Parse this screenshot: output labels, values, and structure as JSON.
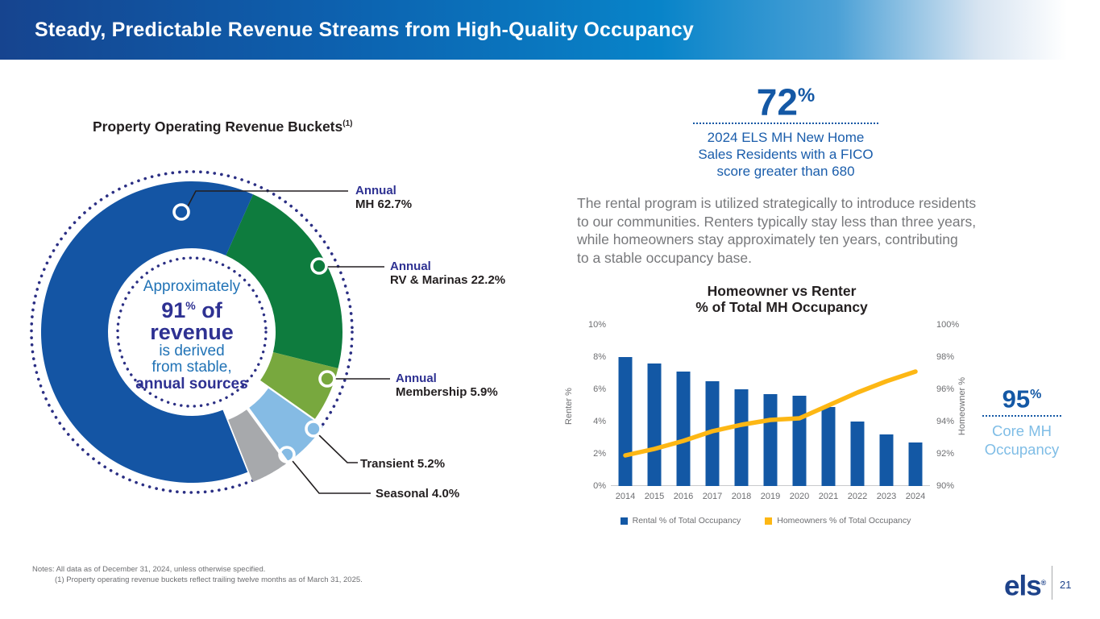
{
  "header": {
    "title": "Steady, Predictable Revenue Streams from High-Quality Occupancy"
  },
  "left_panel": {
    "title": "Property Operating Revenue Buckets",
    "title_superscript": "(1)",
    "center": {
      "line1": "Approximately",
      "big_number": "91",
      "big_pct": "%",
      "big_suffix": " of",
      "line3": "revenue",
      "line4": "is derived",
      "line5": "from stable,",
      "line6": "annual sources"
    }
  },
  "stats": {
    "fico": {
      "value": "72",
      "pct": "%",
      "caption": "2024 ELS MH New Home\nSales Residents with a FICO\nscore greater than 680"
    },
    "core_occupancy": {
      "value": "95",
      "pct": "%",
      "caption": "Core MH\nOccupancy"
    }
  },
  "paragraph": "The rental program is utilized strategically to introduce residents\nto our communities. Renters typically stay less than three years,\nwhile homeowners stay approximately ten years, contributing\nto a stable occupancy base.",
  "chart_data": [
    {
      "type": "pie",
      "title": "Property Operating Revenue Buckets (1)",
      "subtype": "donut",
      "start_angle_deg": 66,
      "center_text": "Approximately 91% of revenue is derived from stable, annual sources",
      "segments": [
        {
          "label": "Annual",
          "name": "MH",
          "display": "MH  62.7%",
          "value": 62.7,
          "color": "#1455a4",
          "exploded": false
        },
        {
          "label": "Annual",
          "name": "RV & Marinas",
          "display": "RV & Marinas  22.2%",
          "value": 22.2,
          "color": "#0e7c3e",
          "exploded": false
        },
        {
          "label": "Annual",
          "name": "Membership",
          "display": "Membership  5.9%",
          "value": 5.9,
          "color": "#78a83e",
          "exploded": false
        },
        {
          "label": "Transient",
          "name": "Transient",
          "display": "Transient  5.2%",
          "value": 5.2,
          "color": "#85bbe4",
          "exploded": true
        },
        {
          "label": "Seasonal",
          "name": "Seasonal",
          "display": "Seasonal  4.0%",
          "value": 4.0,
          "color": "#a7a9ac",
          "exploded": true
        }
      ],
      "dotted_ring_color": "#2b2f84"
    },
    {
      "type": "bar",
      "subtype": "bar+line dual axis",
      "title": "Homeowner vs Renter\n% of Total MH Occupancy",
      "categories": [
        "2014",
        "2015",
        "2016",
        "2017",
        "2018",
        "2019",
        "2020",
        "2021",
        "2022",
        "2023",
        "2024"
      ],
      "series": [
        {
          "name": "Rental % of Total Occupancy",
          "type": "bar",
          "axis": "left",
          "color": "#1358a5",
          "values": [
            8.0,
            7.6,
            7.1,
            6.5,
            6.0,
            5.7,
            5.6,
            4.9,
            4.0,
            3.2,
            2.7
          ]
        },
        {
          "name": "Homeowners % of Total Occupancy",
          "type": "line",
          "axis": "right",
          "color": "#fdb714",
          "values": [
            91.9,
            92.3,
            92.8,
            93.4,
            93.8,
            94.1,
            94.2,
            95.0,
            95.8,
            96.5,
            97.1
          ]
        }
      ],
      "left_axis": {
        "title": "Renter %",
        "min": 0,
        "max": 10,
        "ticks": [
          "10%",
          "8%",
          "6%",
          "4%",
          "2%",
          "0%"
        ]
      },
      "right_axis": {
        "title": "Homeowner %",
        "min": 90,
        "max": 100,
        "ticks": [
          "100%",
          "98%",
          "96%",
          "94%",
          "92%",
          "90%"
        ]
      },
      "legend_position": "bottom",
      "grid": false
    }
  ],
  "footer": {
    "notes_line1": "Notes: All data as of December 31, 2024, unless otherwise specified.",
    "notes_line2": "(1) Property operating revenue buckets reflect trailing twelve months as of March 31, 2025.",
    "logo_text": "els",
    "logo_mark": "®",
    "page_number": "21"
  }
}
